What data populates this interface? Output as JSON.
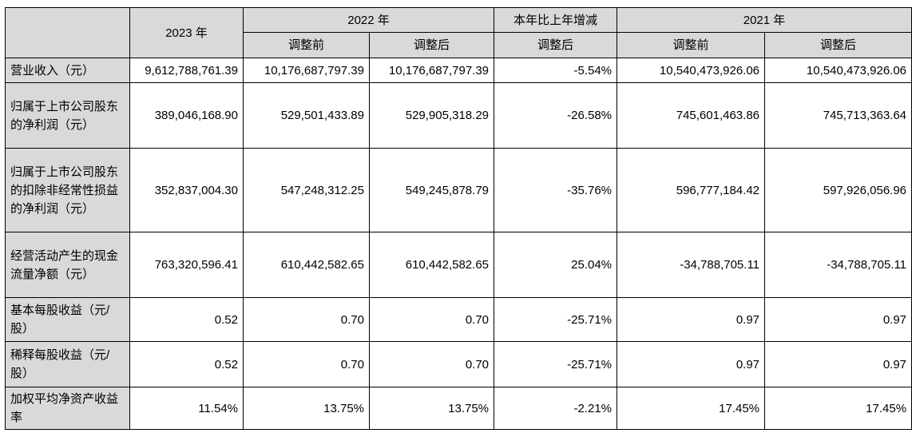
{
  "headers": {
    "year_2023": "2023 年",
    "year_2022": "2022 年",
    "change": "本年比上年增减",
    "year_2021": "2021 年",
    "sub_before_2022": "调整前",
    "sub_after_2022": "调整后",
    "sub_after_change": "调整后",
    "sub_before_2021": "调整前",
    "sub_after_2021": "调整后"
  },
  "rows": [
    {
      "label": "营业收入（元）",
      "v2023": "9,612,788,761.39",
      "v2022_before": "10,176,687,797.39",
      "v2022_after": "10,176,687,797.39",
      "change": "-5.54%",
      "v2021_before": "10,540,473,926.06",
      "v2021_after": "10,540,473,926.06"
    },
    {
      "label": "归属于上市公司股东的净利润（元）",
      "v2023": "389,046,168.90",
      "v2022_before": "529,501,433.89",
      "v2022_after": "529,905,318.29",
      "change": "-26.58%",
      "v2021_before": "745,601,463.86",
      "v2021_after": "745,713,363.64"
    },
    {
      "label": "归属于上市公司股东的扣除非经常性损益的净利润（元）",
      "v2023": "352,837,004.30",
      "v2022_before": "547,248,312.25",
      "v2022_after": "549,245,878.79",
      "change": "-35.76%",
      "v2021_before": "596,777,184.42",
      "v2021_after": "597,926,056.96"
    },
    {
      "label": "经营活动产生的现金流量净额（元）",
      "v2023": "763,320,596.41",
      "v2022_before": "610,442,582.65",
      "v2022_after": "610,442,582.65",
      "change": "25.04%",
      "v2021_before": "-34,788,705.11",
      "v2021_after": "-34,788,705.11"
    },
    {
      "label": "基本每股收益（元/股）",
      "v2023": "0.52",
      "v2022_before": "0.70",
      "v2022_after": "0.70",
      "change": "-25.71%",
      "v2021_before": "0.97",
      "v2021_after": "0.97"
    },
    {
      "label": "稀释每股收益（元/股）",
      "v2023": "0.52",
      "v2022_before": "0.70",
      "v2022_after": "0.70",
      "change": "-25.71%",
      "v2021_before": "0.97",
      "v2021_after": "0.97"
    },
    {
      "label": "加权平均净资产收益率",
      "v2023": "11.54%",
      "v2022_before": "13.75%",
      "v2022_after": "13.75%",
      "change": "-2.21%",
      "v2021_before": "17.45%",
      "v2021_after": "17.45%"
    }
  ]
}
